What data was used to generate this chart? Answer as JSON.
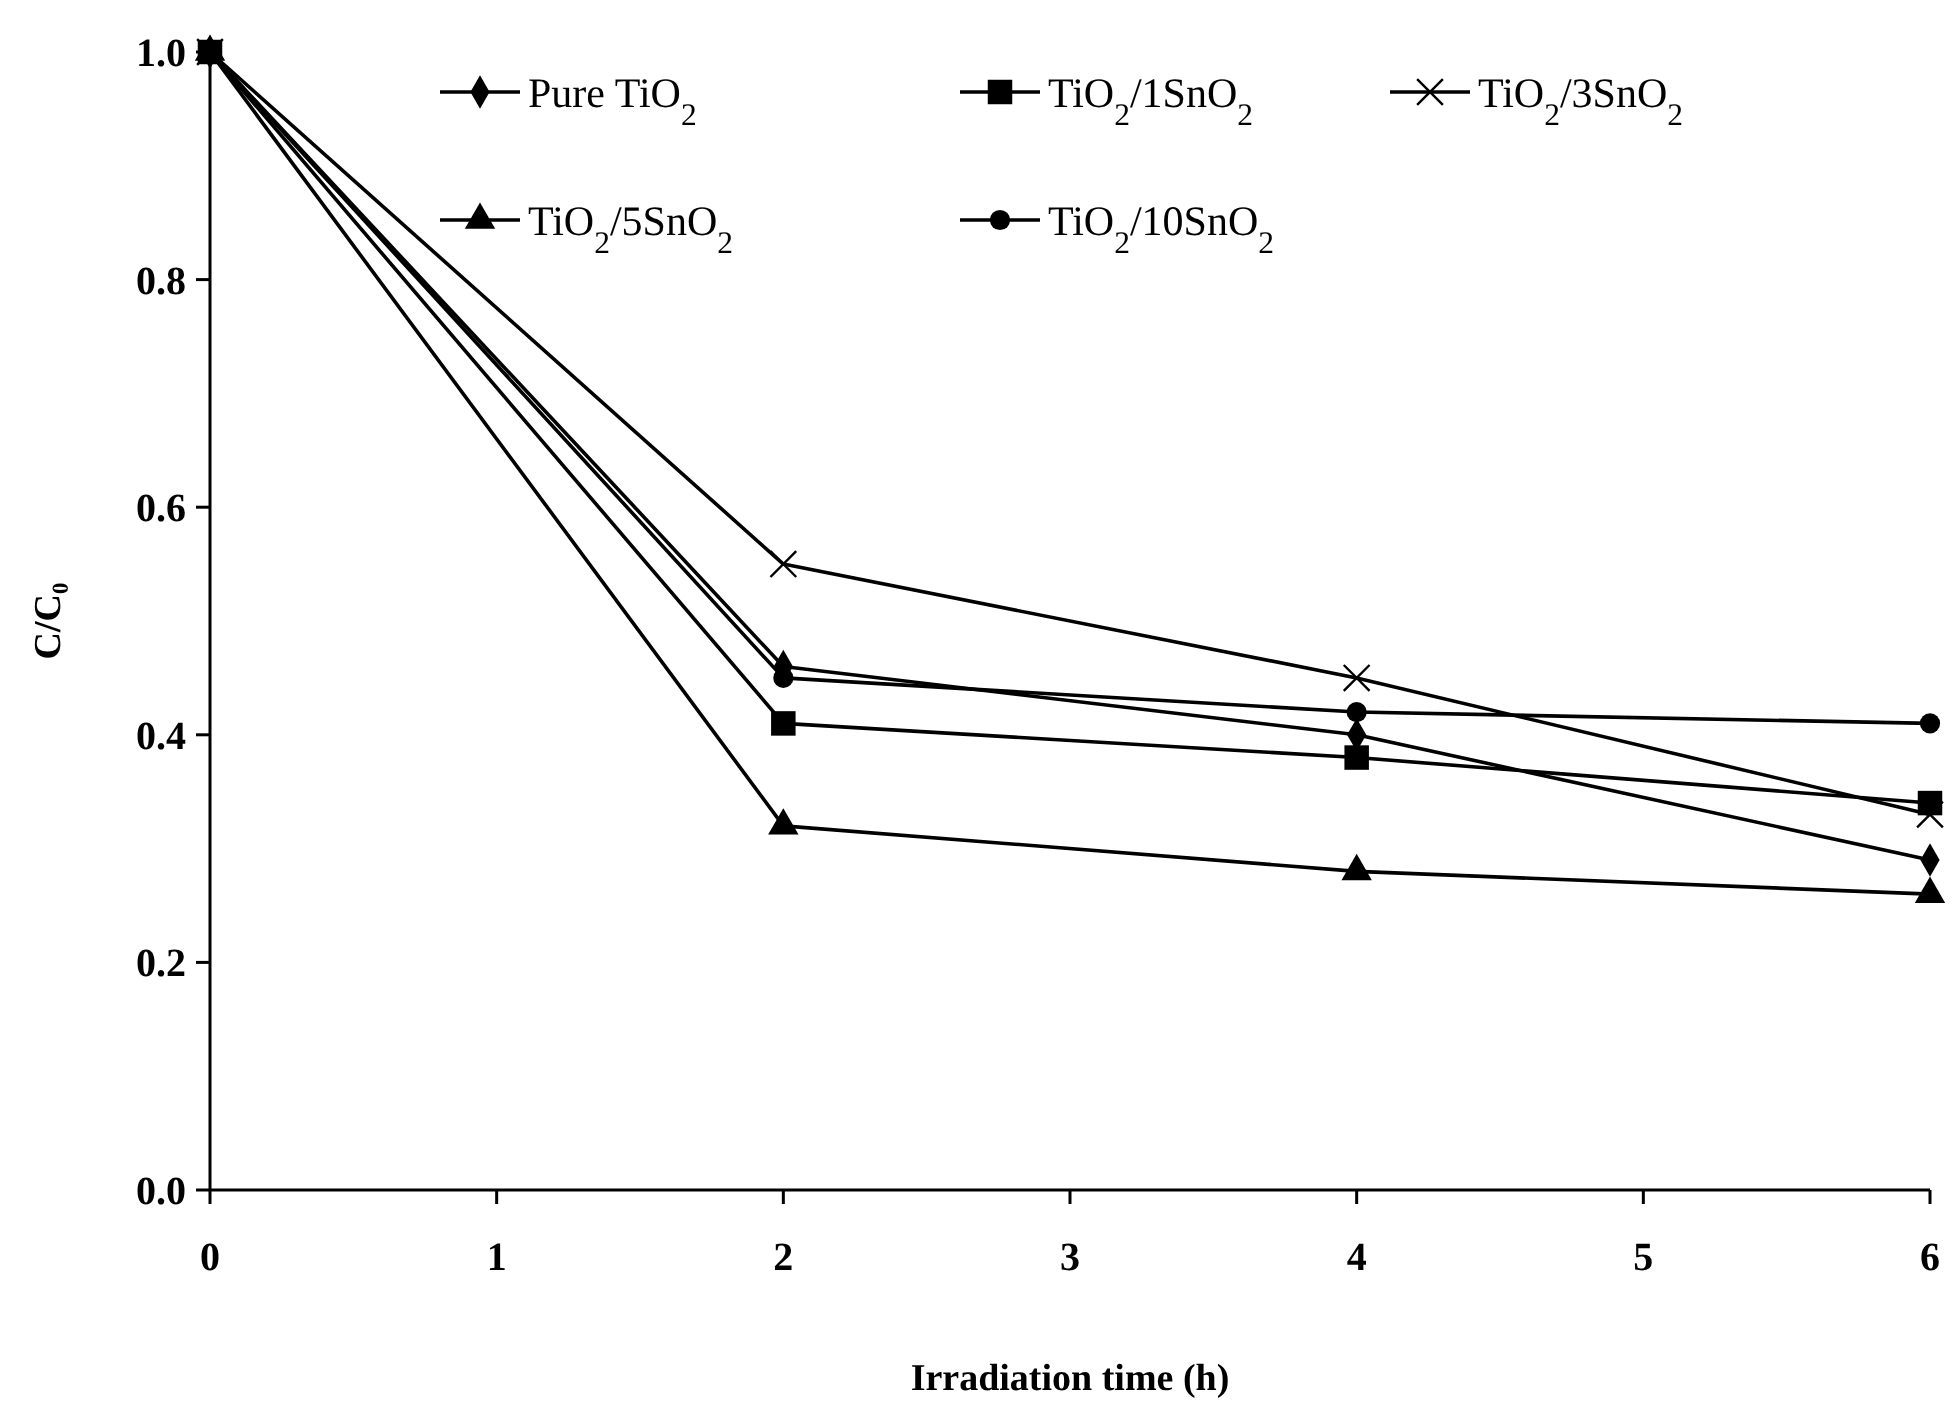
{
  "chart_data": {
    "type": "line",
    "xlabel": "Irradiation time (h)",
    "ylabel": "C/C₀",
    "x": [
      0,
      2,
      4,
      6
    ],
    "xlim": [
      0,
      6
    ],
    "xticks": [
      0,
      1,
      2,
      3,
      4,
      5,
      6
    ],
    "ylim": [
      0,
      1
    ],
    "yticks": [
      {
        "value": 0,
        "label": "0.0"
      },
      {
        "value": 0.2,
        "label": "0.2"
      },
      {
        "value": 0.4,
        "label": "0.4"
      },
      {
        "value": 0.6,
        "label": "0.6"
      },
      {
        "value": 0.8,
        "label": "0.8"
      },
      {
        "value": 1,
        "label": "1.0"
      }
    ],
    "grid": false,
    "legend": "top",
    "line_style": "solid",
    "series": [
      {
        "name": "Pure TiO$_{2}$",
        "color": "#000000",
        "marker": "diamond",
        "values": [
          1,
          0.46,
          0.4,
          0.29
        ]
      },
      {
        "name": "TiO$_{2}$/1SnO$_{2}$",
        "color": "#000000",
        "marker": "square",
        "values": [
          1,
          0.41,
          0.38,
          0.34
        ]
      },
      {
        "name": "TiO$_{2}$/3SnO$_{2}$",
        "color": "#000000",
        "marker": "cross",
        "values": [
          1,
          0.55,
          0.45,
          0.33
        ]
      },
      {
        "name": "TiO$_{2}$/5SnO$_{2}$",
        "color": "#000000",
        "marker": "triangle",
        "values": [
          1,
          0.32,
          0.28,
          0.26
        ]
      },
      {
        "name": "TiO$_{2}$/10SnO$_{2}$",
        "color": "#000000",
        "marker": "circle",
        "values": [
          1,
          0.45,
          0.42,
          0.41
        ]
      }
    ]
  }
}
